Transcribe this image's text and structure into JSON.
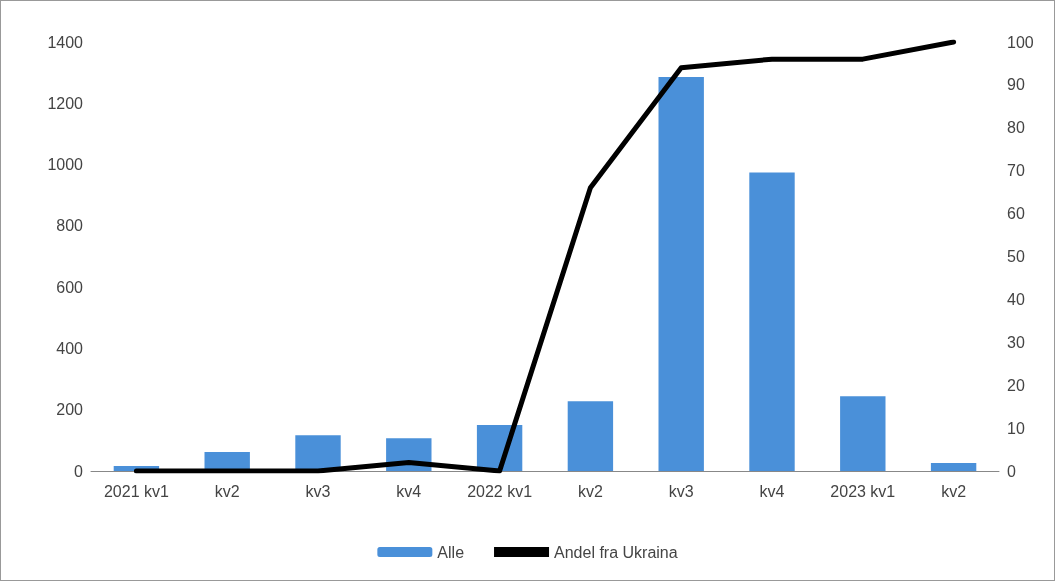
{
  "chart_data": {
    "type": "bar",
    "categories": [
      "2021 kv1",
      "kv2",
      "kv3",
      "kv4",
      "2022 kv1",
      "kv2",
      "kv3",
      "kv4",
      "2023 kv1",
      "kv2"
    ],
    "series": [
      {
        "name": "Alle",
        "color": "#4a90d9",
        "values": [
          16,
          62,
          117,
          107,
          150,
          228,
          1286,
          974,
          244,
          26
        ]
      },
      {
        "name": "Andel fra Ukraina",
        "type": "line",
        "axis": "y2",
        "color": "#000000",
        "values": [
          0,
          0,
          0,
          2,
          0,
          66,
          94,
          96,
          96,
          100
        ]
      }
    ],
    "ylim": [
      0,
      1400
    ],
    "yticks": [
      0,
      200,
      400,
      600,
      800,
      1000,
      1200,
      1400
    ],
    "y2lim": [
      0,
      100
    ],
    "y2ticks": [
      0,
      10,
      20,
      30,
      40,
      50,
      60,
      70,
      80,
      90,
      100
    ],
    "grid": false,
    "legend": "bottom",
    "marker": "none",
    "line_style": "solid"
  }
}
